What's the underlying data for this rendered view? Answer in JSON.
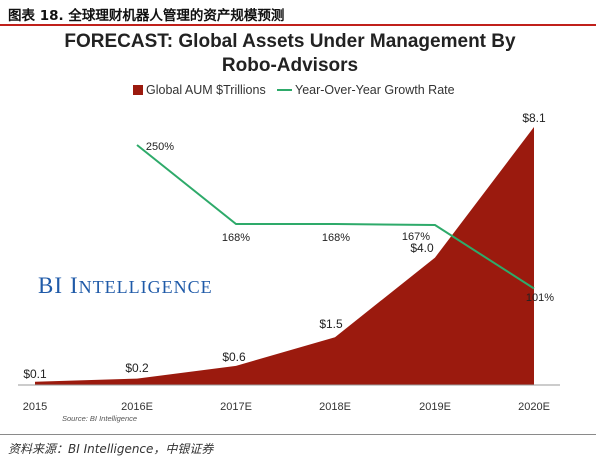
{
  "figure_title": "图表 18. 全球理财机器人管理的资产规模预测",
  "source_line": "资料来源：BI Intelligence，中银证券",
  "colors": {
    "area": "#9b1a0e",
    "line": "#2eaa6a",
    "accent_rule": "#c0201b",
    "watermark": "#1f5aa8"
  },
  "chart_data": {
    "type": "area",
    "title_line1": "FORECAST: Global Assets Under Management By",
    "title_line2": "Robo-Advisors",
    "categories": [
      "2015",
      "2016E",
      "2017E",
      "2018E",
      "2019E",
      "2020E"
    ],
    "series": [
      {
        "name": "Global AUM $Trillions",
        "type": "area",
        "values": [
          0.1,
          0.2,
          0.6,
          1.5,
          4.0,
          8.1
        ],
        "labels": [
          "$0.1",
          "$0.2",
          "$0.6",
          "$1.5",
          "$4.0",
          "$8.1"
        ]
      },
      {
        "name": "Year-Over-Year Growth Rate",
        "type": "line",
        "x": [
          "2016E",
          "2017E",
          "2018E",
          "2019E",
          "2020E"
        ],
        "values": [
          250,
          168,
          168,
          167,
          101
        ],
        "labels": [
          "250%",
          "168%",
          "168%",
          "167%",
          "101%"
        ]
      }
    ],
    "legend_position": "top",
    "grid": false,
    "watermark": {
      "first": "BI",
      "rest": "INTELLIGENCE"
    },
    "chart_source": "Source: BI Intelligence"
  }
}
